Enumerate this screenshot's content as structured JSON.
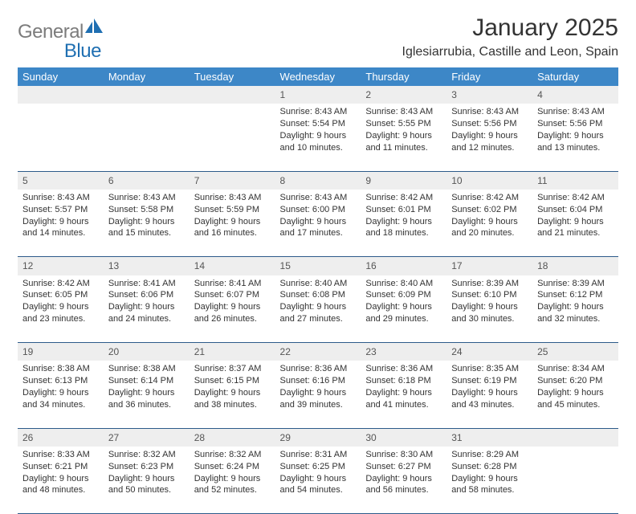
{
  "logo": {
    "part1": "General",
    "part2": "Blue"
  },
  "title": "January 2025",
  "location": "Iglesiarrubia, Castille and Leon, Spain",
  "weekdays": [
    "Sunday",
    "Monday",
    "Tuesday",
    "Wednesday",
    "Thursday",
    "Friday",
    "Saturday"
  ],
  "colors": {
    "header_bg": "#3d87c7",
    "header_text": "#ffffff",
    "daynum_bg": "#eeeeee",
    "rule": "#2d5a8a",
    "logo_gray": "#7c7c7c",
    "logo_blue": "#1f6fb2"
  },
  "weeks": [
    [
      null,
      null,
      null,
      {
        "n": "1",
        "sr": "Sunrise: 8:43 AM",
        "ss": "Sunset: 5:54 PM",
        "d1": "Daylight: 9 hours",
        "d2": "and 10 minutes."
      },
      {
        "n": "2",
        "sr": "Sunrise: 8:43 AM",
        "ss": "Sunset: 5:55 PM",
        "d1": "Daylight: 9 hours",
        "d2": "and 11 minutes."
      },
      {
        "n": "3",
        "sr": "Sunrise: 8:43 AM",
        "ss": "Sunset: 5:56 PM",
        "d1": "Daylight: 9 hours",
        "d2": "and 12 minutes."
      },
      {
        "n": "4",
        "sr": "Sunrise: 8:43 AM",
        "ss": "Sunset: 5:56 PM",
        "d1": "Daylight: 9 hours",
        "d2": "and 13 minutes."
      }
    ],
    [
      {
        "n": "5",
        "sr": "Sunrise: 8:43 AM",
        "ss": "Sunset: 5:57 PM",
        "d1": "Daylight: 9 hours",
        "d2": "and 14 minutes."
      },
      {
        "n": "6",
        "sr": "Sunrise: 8:43 AM",
        "ss": "Sunset: 5:58 PM",
        "d1": "Daylight: 9 hours",
        "d2": "and 15 minutes."
      },
      {
        "n": "7",
        "sr": "Sunrise: 8:43 AM",
        "ss": "Sunset: 5:59 PM",
        "d1": "Daylight: 9 hours",
        "d2": "and 16 minutes."
      },
      {
        "n": "8",
        "sr": "Sunrise: 8:43 AM",
        "ss": "Sunset: 6:00 PM",
        "d1": "Daylight: 9 hours",
        "d2": "and 17 minutes."
      },
      {
        "n": "9",
        "sr": "Sunrise: 8:42 AM",
        "ss": "Sunset: 6:01 PM",
        "d1": "Daylight: 9 hours",
        "d2": "and 18 minutes."
      },
      {
        "n": "10",
        "sr": "Sunrise: 8:42 AM",
        "ss": "Sunset: 6:02 PM",
        "d1": "Daylight: 9 hours",
        "d2": "and 20 minutes."
      },
      {
        "n": "11",
        "sr": "Sunrise: 8:42 AM",
        "ss": "Sunset: 6:04 PM",
        "d1": "Daylight: 9 hours",
        "d2": "and 21 minutes."
      }
    ],
    [
      {
        "n": "12",
        "sr": "Sunrise: 8:42 AM",
        "ss": "Sunset: 6:05 PM",
        "d1": "Daylight: 9 hours",
        "d2": "and 23 minutes."
      },
      {
        "n": "13",
        "sr": "Sunrise: 8:41 AM",
        "ss": "Sunset: 6:06 PM",
        "d1": "Daylight: 9 hours",
        "d2": "and 24 minutes."
      },
      {
        "n": "14",
        "sr": "Sunrise: 8:41 AM",
        "ss": "Sunset: 6:07 PM",
        "d1": "Daylight: 9 hours",
        "d2": "and 26 minutes."
      },
      {
        "n": "15",
        "sr": "Sunrise: 8:40 AM",
        "ss": "Sunset: 6:08 PM",
        "d1": "Daylight: 9 hours",
        "d2": "and 27 minutes."
      },
      {
        "n": "16",
        "sr": "Sunrise: 8:40 AM",
        "ss": "Sunset: 6:09 PM",
        "d1": "Daylight: 9 hours",
        "d2": "and 29 minutes."
      },
      {
        "n": "17",
        "sr": "Sunrise: 8:39 AM",
        "ss": "Sunset: 6:10 PM",
        "d1": "Daylight: 9 hours",
        "d2": "and 30 minutes."
      },
      {
        "n": "18",
        "sr": "Sunrise: 8:39 AM",
        "ss": "Sunset: 6:12 PM",
        "d1": "Daylight: 9 hours",
        "d2": "and 32 minutes."
      }
    ],
    [
      {
        "n": "19",
        "sr": "Sunrise: 8:38 AM",
        "ss": "Sunset: 6:13 PM",
        "d1": "Daylight: 9 hours",
        "d2": "and 34 minutes."
      },
      {
        "n": "20",
        "sr": "Sunrise: 8:38 AM",
        "ss": "Sunset: 6:14 PM",
        "d1": "Daylight: 9 hours",
        "d2": "and 36 minutes."
      },
      {
        "n": "21",
        "sr": "Sunrise: 8:37 AM",
        "ss": "Sunset: 6:15 PM",
        "d1": "Daylight: 9 hours",
        "d2": "and 38 minutes."
      },
      {
        "n": "22",
        "sr": "Sunrise: 8:36 AM",
        "ss": "Sunset: 6:16 PM",
        "d1": "Daylight: 9 hours",
        "d2": "and 39 minutes."
      },
      {
        "n": "23",
        "sr": "Sunrise: 8:36 AM",
        "ss": "Sunset: 6:18 PM",
        "d1": "Daylight: 9 hours",
        "d2": "and 41 minutes."
      },
      {
        "n": "24",
        "sr": "Sunrise: 8:35 AM",
        "ss": "Sunset: 6:19 PM",
        "d1": "Daylight: 9 hours",
        "d2": "and 43 minutes."
      },
      {
        "n": "25",
        "sr": "Sunrise: 8:34 AM",
        "ss": "Sunset: 6:20 PM",
        "d1": "Daylight: 9 hours",
        "d2": "and 45 minutes."
      }
    ],
    [
      {
        "n": "26",
        "sr": "Sunrise: 8:33 AM",
        "ss": "Sunset: 6:21 PM",
        "d1": "Daylight: 9 hours",
        "d2": "and 48 minutes."
      },
      {
        "n": "27",
        "sr": "Sunrise: 8:32 AM",
        "ss": "Sunset: 6:23 PM",
        "d1": "Daylight: 9 hours",
        "d2": "and 50 minutes."
      },
      {
        "n": "28",
        "sr": "Sunrise: 8:32 AM",
        "ss": "Sunset: 6:24 PM",
        "d1": "Daylight: 9 hours",
        "d2": "and 52 minutes."
      },
      {
        "n": "29",
        "sr": "Sunrise: 8:31 AM",
        "ss": "Sunset: 6:25 PM",
        "d1": "Daylight: 9 hours",
        "d2": "and 54 minutes."
      },
      {
        "n": "30",
        "sr": "Sunrise: 8:30 AM",
        "ss": "Sunset: 6:27 PM",
        "d1": "Daylight: 9 hours",
        "d2": "and 56 minutes."
      },
      {
        "n": "31",
        "sr": "Sunrise: 8:29 AM",
        "ss": "Sunset: 6:28 PM",
        "d1": "Daylight: 9 hours",
        "d2": "and 58 minutes."
      },
      null
    ]
  ]
}
